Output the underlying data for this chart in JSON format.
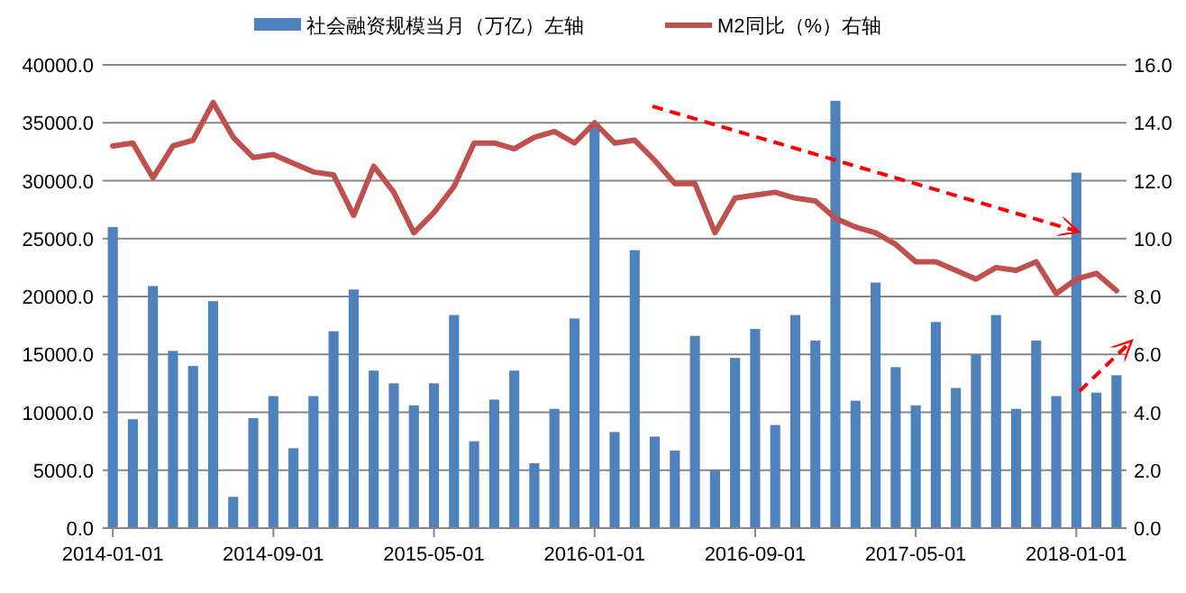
{
  "chart_data": {
    "type": "bar",
    "categories": [
      "2014-01-01",
      null,
      null,
      null,
      null,
      null,
      null,
      null,
      "2014-09-01",
      null,
      null,
      null,
      null,
      null,
      null,
      null,
      "2015-05-01",
      null,
      null,
      null,
      null,
      null,
      null,
      null,
      "2016-01-01",
      null,
      null,
      null,
      null,
      null,
      null,
      null,
      "2016-09-01",
      null,
      null,
      null,
      null,
      null,
      null,
      null,
      "2017-05-01",
      null,
      null,
      null,
      null,
      null,
      null,
      null,
      "2018-01-01",
      null,
      null
    ],
    "series": [
      {
        "name": "社会融资规模当月（万亿）左轴",
        "color": "#4f81bd",
        "values": [
          26000,
          9400,
          20900,
          15300,
          14000,
          19600,
          2700,
          9500,
          11400,
          6900,
          11400,
          17000,
          20600,
          13600,
          12500,
          10600,
          12500,
          18400,
          7500,
          11100,
          13600,
          5600,
          10300,
          18100,
          35000,
          8300,
          24000,
          7900,
          6700,
          16600,
          5000,
          14700,
          17200,
          8900,
          18400,
          16200,
          36900,
          11000,
          21200,
          13900,
          10600,
          17800,
          12100,
          15000,
          18400,
          10300,
          16200,
          11400,
          30700,
          11700,
          13200
        ]
      },
      {
        "name": "M2同比（%）右轴",
        "type": "line",
        "axis": "y2",
        "color": "#c0504d",
        "values": [
          13.2,
          13.3,
          12.1,
          13.2,
          13.4,
          14.7,
          13.5,
          12.8,
          12.9,
          12.6,
          12.3,
          12.2,
          10.8,
          12.5,
          11.6,
          10.2,
          10.9,
          11.8,
          13.3,
          13.3,
          13.1,
          13.5,
          13.7,
          13.3,
          14.0,
          13.3,
          13.4,
          12.7,
          11.9,
          11.9,
          10.2,
          11.4,
          11.5,
          11.6,
          11.4,
          11.3,
          10.7,
          10.4,
          10.2,
          9.8,
          9.2,
          9.2,
          8.9,
          8.6,
          9.0,
          8.9,
          9.2,
          8.1,
          8.6,
          8.8,
          8.2
        ]
      }
    ],
    "ylim": [
      0,
      40000
    ],
    "yticks": [
      {
        "value": 0,
        "label": "0.0"
      },
      {
        "value": 5000,
        "label": "5000.0"
      },
      {
        "value": 10000,
        "label": "10000.0"
      },
      {
        "value": 15000,
        "label": "15000.0"
      },
      {
        "value": 20000,
        "label": "20000.0"
      },
      {
        "value": 25000,
        "label": "25000.0"
      },
      {
        "value": 30000,
        "label": "30000.0"
      },
      {
        "value": 35000,
        "label": "35000.0"
      },
      {
        "value": 40000,
        "label": "40000.0"
      }
    ],
    "y2lim": [
      0,
      16
    ],
    "y2ticks": [
      {
        "value": 0,
        "label": "0.0"
      },
      {
        "value": 2,
        "label": "2.0"
      },
      {
        "value": 4,
        "label": "4.0"
      },
      {
        "value": 6,
        "label": "6.0"
      },
      {
        "value": 8,
        "label": "8.0"
      },
      {
        "value": 10,
        "label": "10.0"
      },
      {
        "value": 12,
        "label": "12.0"
      },
      {
        "value": 14,
        "label": "14.0"
      },
      {
        "value": 16,
        "label": "16.0"
      }
    ],
    "grid": "y",
    "legend": "top",
    "marker": "none",
    "line_style": "solid"
  }
}
